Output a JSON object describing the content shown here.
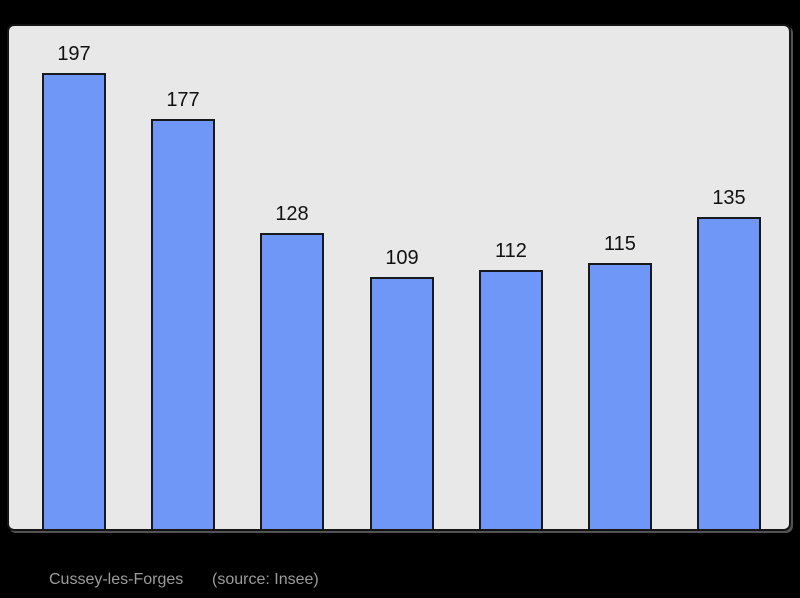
{
  "page": {
    "background": "#000000",
    "frame_border_color": "#141414"
  },
  "chart_data": {
    "type": "bar",
    "values": [
      197,
      177,
      128,
      109,
      112,
      115,
      135
    ],
    "bar_labels": [
      "197",
      "177",
      "128",
      "109",
      "112",
      "115",
      "135"
    ],
    "title": "",
    "xlabel": "",
    "ylabel": "",
    "ylim": [
      0,
      217
    ],
    "grid": false,
    "legend": false,
    "plot_background": "#e8e8e8",
    "bar_color": "#6e97f8",
    "bar_border_color": "#17191d",
    "data_label_color": "#111111"
  },
  "caption": {
    "name": "Cussey-les-Forges",
    "source": "(source: Insee)",
    "color": "#9c9c9c"
  }
}
